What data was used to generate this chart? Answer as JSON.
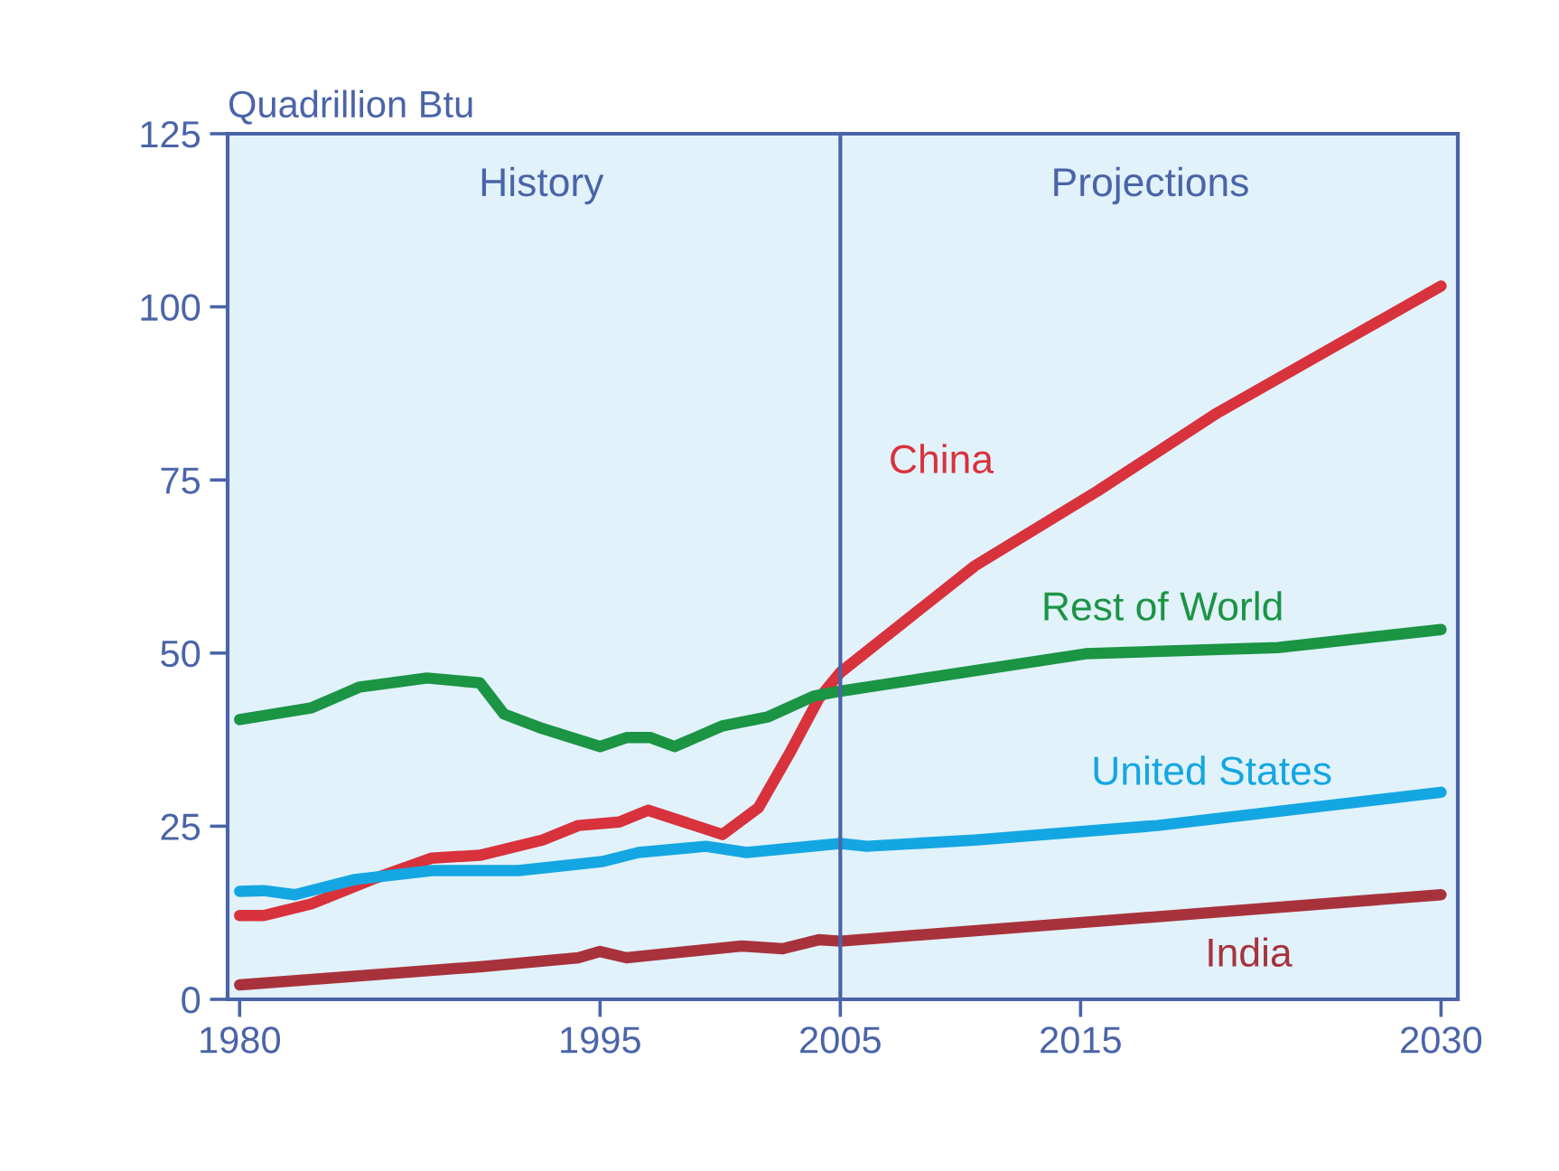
{
  "chart_data": {
    "type": "line",
    "ylabel": "Quadrillion Btu",
    "xlim": [
      1979.5,
      2030.7
    ],
    "ylim": [
      0,
      125
    ],
    "xticks": [
      1980,
      1995,
      2005,
      2015,
      2030
    ],
    "yticks": [
      0,
      25,
      50,
      75,
      100,
      125
    ],
    "grid": false,
    "legend": false,
    "marker": "none",
    "line_style": "solid",
    "ref_lines": [
      {
        "axis": "x",
        "value": 2005,
        "color": "#4a64a8"
      }
    ],
    "annotations": [
      "History",
      "Projections"
    ],
    "series": [
      {
        "name": "China",
        "color": "#d8323c",
        "x": [
          1980,
          1981,
          1983,
          1985.5,
          1988,
          1990,
          1992.6,
          1994.1,
          1995.8,
          1997,
          2000.1,
          2001.6,
          2002.9,
          2004.1,
          2005,
          2010.6,
          2015.7,
          2020.7,
          2030
        ],
        "values": [
          12.1,
          12.1,
          13.8,
          17.3,
          20.4,
          20.8,
          23,
          25.1,
          25.6,
          27.3,
          23.8,
          27.7,
          35.6,
          43.4,
          47.2,
          62.6,
          73.4,
          84.7,
          103
        ]
      },
      {
        "name": "Rest of World",
        "color": "#1b9444",
        "x": [
          1980,
          1983,
          1985,
          1987.8,
          1990,
          1991,
          1992.6,
          1995,
          1996.1,
          1997.1,
          1998.1,
          2000.1,
          2002,
          2003.9,
          2005,
          2015.2,
          2023.2,
          2030
        ],
        "values": [
          40.4,
          42.1,
          45.1,
          46.4,
          45.7,
          41.2,
          39.1,
          36.5,
          37.8,
          37.8,
          36.5,
          39.5,
          40.8,
          43.8,
          44.5,
          49.9,
          50.8,
          53.4
        ]
      },
      {
        "name": "United States",
        "color": "#14a6e2",
        "x": [
          1980,
          1981,
          1982.3,
          1984.8,
          1988,
          1991.6,
          1995.1,
          1996.6,
          1999.4,
          2001.1,
          2005,
          2006.1,
          2010.6,
          2018.2,
          2030
        ],
        "values": [
          15.6,
          15.7,
          15.1,
          17.3,
          18.6,
          18.6,
          19.9,
          21.2,
          22.1,
          21.2,
          22.5,
          22.1,
          23,
          25.1,
          29.9
        ]
      },
      {
        "name": "India",
        "color": "#a8323c",
        "x": [
          1980,
          1985,
          1990,
          1994.1,
          1995,
          1996.1,
          2000.9,
          2002.6,
          2004.1,
          2005,
          2030
        ],
        "values": [
          2.1,
          3.4,
          4.7,
          6,
          6.9,
          6,
          7.7,
          7.3,
          8.6,
          8.4,
          15.1
        ]
      }
    ]
  }
}
